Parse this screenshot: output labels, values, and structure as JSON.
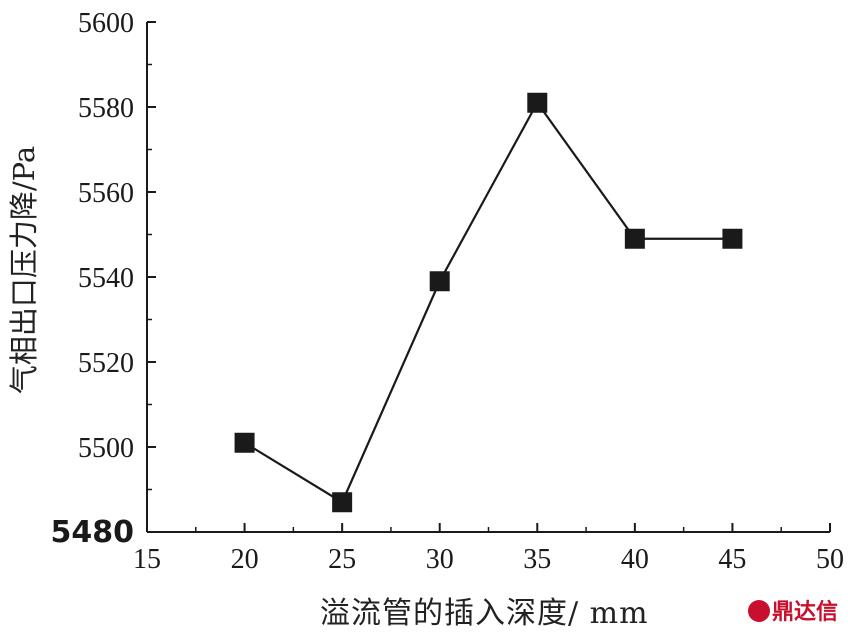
{
  "chart_data": {
    "type": "line",
    "xlabel": "溢流管的插入深度/ mm",
    "ylabel": "气相出口压力降/Pa",
    "xlim": [
      15,
      50
    ],
    "ylim": [
      5480,
      5600
    ],
    "xticks": [
      15,
      20,
      25,
      30,
      35,
      40,
      45,
      50
    ],
    "yticks": [
      5480,
      5500,
      5520,
      5540,
      5560,
      5580,
      5600
    ],
    "marker": "square",
    "series": [
      {
        "x": [
          20,
          25,
          30,
          35,
          40,
          45
        ],
        "y": [
          5501,
          5487,
          5539,
          5581,
          5549,
          5549
        ]
      }
    ],
    "grid": false,
    "colors": {
      "line": "#1a1a1a",
      "marker": "#1a1a1a",
      "axis": "#1a1a1a"
    }
  },
  "watermark": {
    "text": "鼎达信",
    "color": "#c8102e"
  }
}
